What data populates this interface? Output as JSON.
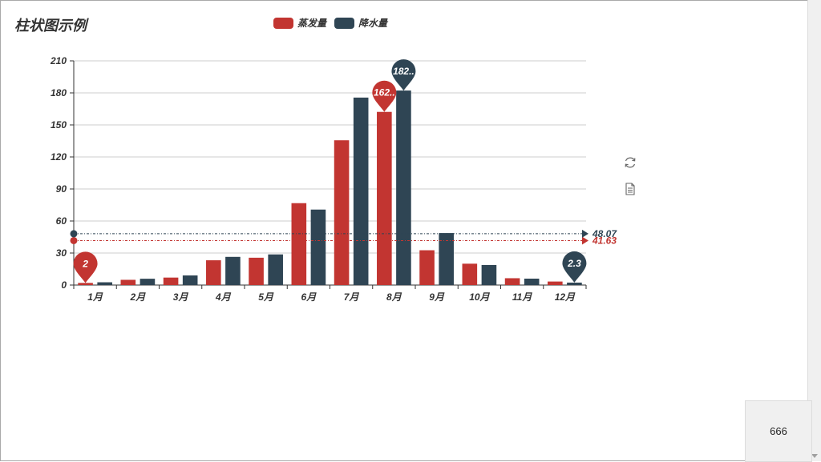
{
  "title": "柱状图示例",
  "corner_box_text": "666",
  "colors": {
    "evaporation": "#c23531",
    "precipitation": "#2f4554",
    "axis": "#333333",
    "grid": "#cccccc",
    "toolbox": "#666666"
  },
  "toolbox": {
    "icons": [
      "refresh-icon",
      "data-view-icon"
    ]
  },
  "chart_data": {
    "type": "bar",
    "title": "柱状图示例",
    "categories": [
      "1月",
      "2月",
      "3月",
      "4月",
      "5月",
      "6月",
      "7月",
      "8月",
      "9月",
      "10月",
      "11月",
      "12月"
    ],
    "series": [
      {
        "name": "蒸发量",
        "color": "#c23531",
        "values": [
          2.0,
          4.9,
          7.0,
          23.2,
          25.6,
          76.7,
          135.6,
          162.2,
          32.6,
          20.0,
          6.4,
          3.3
        ],
        "markPoint": [
          {
            "type": "min",
            "value": 2,
            "label": "2",
            "category_index": 0
          },
          {
            "type": "max",
            "value": 162.2,
            "label": "162.2",
            "category_index": 7
          }
        ],
        "markLine": {
          "type": "average",
          "value": 41.63,
          "label": "41.63"
        }
      },
      {
        "name": "降水量",
        "color": "#2f4554",
        "values": [
          2.6,
          5.9,
          9.0,
          26.4,
          28.7,
          70.7,
          175.6,
          182.2,
          48.7,
          18.8,
          6.0,
          2.3
        ],
        "markPoint": [
          {
            "type": "max",
            "value": 182.2,
            "label": "182.2",
            "category_index": 7
          },
          {
            "type": "min",
            "value": 2.3,
            "label": "2.3",
            "category_index": 11
          }
        ],
        "markLine": {
          "type": "average",
          "value": 48.07,
          "label": "48.07"
        }
      }
    ],
    "yticks": [
      0,
      30,
      60,
      90,
      120,
      150,
      180,
      210
    ],
    "ylim": [
      0,
      210
    ],
    "legend_position": "top-center",
    "grid": "horizontal"
  }
}
